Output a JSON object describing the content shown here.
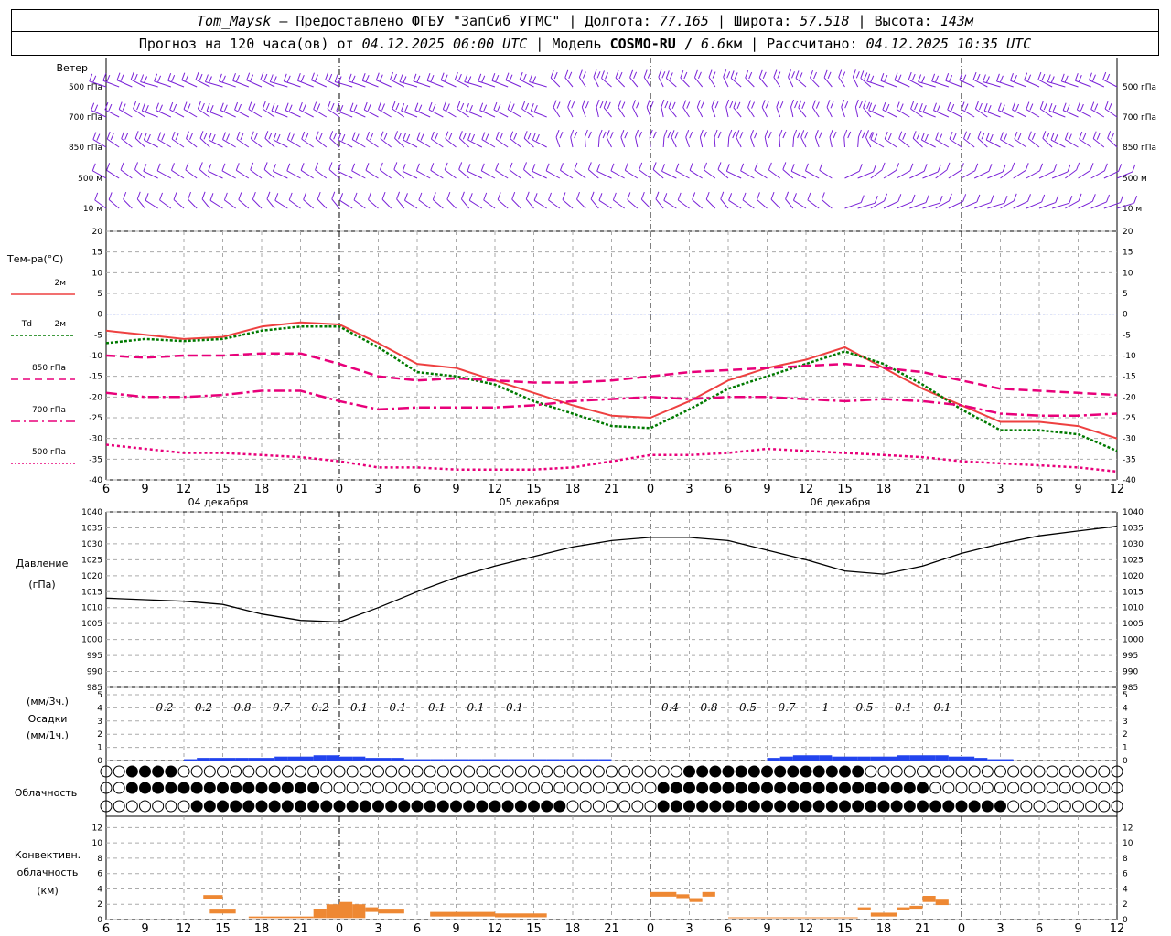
{
  "header": {
    "line1": {
      "station": "Tom_Maysk",
      "provided": " – Предоставлено ФГБУ \"ЗапСиб УГМС\" | Долгота: ",
      "lon": "77.165",
      "lat_label": " | Широта: ",
      "lat": "57.518",
      "alt_label": " | Высота: ",
      "alt": "143м"
    },
    "line2": {
      "forecast": "Прогноз на 120 часа(ов) от ",
      "from": "04.12.2025 06:00 UTC",
      "model_label": " | Модель ",
      "model": "COSMO-RU / ",
      "res": "6.6",
      "res_unit": "км | Рассчитано: ",
      "calc": "04.12.2025 10:35 UTC"
    }
  },
  "chart_data": {
    "type": "line",
    "x_hours_labels": [
      "6",
      "9",
      "12",
      "15",
      "18",
      "21",
      "0",
      "3",
      "6",
      "9",
      "12",
      "15",
      "18",
      "21",
      "0",
      "3",
      "6",
      "9",
      "12",
      "15",
      "18",
      "21",
      "0",
      "3",
      "6",
      "9",
      "12"
    ],
    "day_labels": [
      "04 декабря",
      "05 декабря",
      "06 декабря"
    ],
    "wind": {
      "title": "Ветер",
      "levels": [
        "500 гПа",
        "700 гПа",
        "850 гПа",
        "500 м",
        "10 м"
      ]
    },
    "temperature": {
      "title": "Тем-ра(°C)",
      "ylim": [
        -40,
        20
      ],
      "yticks": [
        20,
        15,
        10,
        5,
        0,
        -5,
        -10,
        -15,
        -20,
        -25,
        -30,
        -35,
        -40
      ],
      "legend": [
        "2м",
        "Td",
        "2м",
        "850 гПа",
        "700 гПа",
        "500 гПа"
      ],
      "colors": {
        "t2m": "#ee4040",
        "td": "#007a00",
        "p850": "#e8007a",
        "p700": "#e8007a",
        "p500": "#e8007a"
      },
      "x": [
        6,
        9,
        12,
        15,
        18,
        21,
        24,
        27,
        30,
        33,
        36,
        39,
        42,
        45,
        48,
        51,
        54,
        57,
        60,
        63,
        66,
        69,
        72,
        75,
        78,
        81,
        84
      ],
      "series": [
        {
          "name": "2м",
          "values": [
            -4,
            -5,
            -6,
            -5.5,
            -3,
            -2,
            -2.5,
            -7,
            -12,
            -13,
            -16,
            -19,
            -22,
            -24.5,
            -25,
            -21,
            -16,
            -13,
            -11,
            -8,
            -13,
            -18,
            -22,
            -26,
            -26,
            -27,
            -30
          ]
        },
        {
          "name": "Td",
          "values": [
            -7,
            -6,
            -6.5,
            -6,
            -4,
            -3,
            -3,
            -8,
            -14,
            -15,
            -17,
            -21,
            -24,
            -27,
            -27.5,
            -23,
            -18,
            -15,
            -12,
            -9,
            -12,
            -17,
            -23,
            -28,
            -28,
            -29,
            -33
          ]
        },
        {
          "name": "850 гПа",
          "values": [
            -10,
            -10.5,
            -10,
            -10,
            -9.5,
            -9.5,
            -12,
            -15,
            -16,
            -15.5,
            -16,
            -16.5,
            -16.5,
            -16,
            -15,
            -14,
            -13.5,
            -13,
            -12.5,
            -12,
            -13,
            -14,
            -16,
            -18,
            -18.5,
            -19,
            -19.5
          ]
        },
        {
          "name": "700 гПа",
          "values": [
            -19,
            -20,
            -20,
            -19.5,
            -18.5,
            -18.5,
            -21,
            -23,
            -22.5,
            -22.5,
            -22.5,
            -22,
            -21,
            -20.5,
            -20,
            -20.5,
            -20,
            -20,
            -20.5,
            -21,
            -20.5,
            -21,
            -22,
            -24,
            -24.5,
            -24.5,
            -24
          ]
        },
        {
          "name": "500 гПа",
          "values": [
            -31.5,
            -32.5,
            -33.5,
            -33.5,
            -34,
            -34.5,
            -35.5,
            -37,
            -37,
            -37.5,
            -37.5,
            -37.5,
            -37,
            -35.5,
            -34,
            -34,
            -33.5,
            -32.5,
            -33,
            -33.5,
            -34,
            -34.5,
            -35.5,
            -36,
            -36.5,
            -37,
            -38
          ]
        }
      ]
    },
    "pressure": {
      "title1": "Давление",
      "title2": "(гПа)",
      "ylim": [
        985,
        1040
      ],
      "yticks": [
        1040,
        1035,
        1030,
        1025,
        1020,
        1015,
        1010,
        1005,
        1000,
        995,
        990,
        985
      ],
      "x": [
        6,
        9,
        12,
        15,
        18,
        21,
        24,
        27,
        30,
        33,
        36,
        39,
        42,
        45,
        48,
        51,
        54,
        57,
        60,
        63,
        66,
        69,
        72,
        75,
        78,
        81,
        84
      ],
      "values": [
        1013,
        1012.5,
        1012,
        1011,
        1008,
        1006,
        1005.5,
        1010,
        1015,
        1019.5,
        1023,
        1026,
        1029,
        1031,
        1032,
        1032,
        1031,
        1028,
        1025,
        1021.5,
        1020.5,
        1023,
        1027,
        1030,
        1032.5,
        1034,
        1035.5
      ]
    },
    "precip": {
      "title1": "(мм/3ч.)",
      "title2": "Осадки",
      "title3": "(мм/1ч.)",
      "ylim": [
        0,
        5
      ],
      "yticks": [
        5,
        4,
        3,
        2,
        1,
        0
      ],
      "labels_3h": [
        {
          "h": 12,
          "v": "0.2"
        },
        {
          "h": 15,
          "v": "0.2"
        },
        {
          "h": 18,
          "v": "0.8"
        },
        {
          "h": 21,
          "v": "0.7"
        },
        {
          "h": 24,
          "v": "0.2"
        },
        {
          "h": 27,
          "v": "0.1"
        },
        {
          "h": 30,
          "v": "0.1"
        },
        {
          "h": 33,
          "v": "0.1"
        },
        {
          "h": 36,
          "v": "0.1"
        },
        {
          "h": 39,
          "v": "0.1"
        },
        {
          "h": 51,
          "v": "0.4"
        },
        {
          "h": 54,
          "v": "0.8"
        },
        {
          "h": 57,
          "v": "0.5"
        },
        {
          "h": 60,
          "v": "0.7"
        },
        {
          "h": 63,
          "v": "1"
        },
        {
          "h": 66,
          "v": "0.5"
        },
        {
          "h": 69,
          "v": "0.1"
        },
        {
          "h": 72,
          "v": "0.1"
        }
      ],
      "hourly_mm": [
        0,
        0,
        0,
        0,
        0,
        0,
        0.1,
        0.2,
        0.2,
        0.2,
        0.2,
        0.2,
        0.2,
        0.3,
        0.3,
        0.3,
        0.4,
        0.4,
        0.3,
        0.3,
        0.2,
        0.2,
        0.2,
        0.1,
        0.1,
        0.1,
        0.1,
        0.1,
        0.1,
        0.1,
        0.1,
        0.1,
        0.1,
        0.1,
        0.1,
        0.1,
        0.1,
        0.1,
        0.1,
        0,
        0,
        0,
        0,
        0,
        0,
        0,
        0,
        0,
        0,
        0,
        0,
        0.2,
        0.3,
        0.4,
        0.4,
        0.4,
        0.3,
        0.3,
        0.3,
        0.3,
        0.3,
        0.4,
        0.4,
        0.4,
        0.4,
        0.3,
        0.3,
        0.2,
        0.1,
        0.1,
        0,
        0,
        0,
        0,
        0,
        0,
        0,
        0,
        0,
        0
      ]
    },
    "cloud": {
      "title": "Облачность"
    },
    "convective": {
      "title1": "Конвективн.",
      "title2": "облачность",
      "title3": "(км)",
      "ylim": [
        0,
        13
      ],
      "yticks": [
        12,
        10,
        8,
        6,
        4,
        2,
        0
      ],
      "blocks": [
        {
          "h0": 13.5,
          "h1": 15,
          "bot": 2.7,
          "top": 3.2
        },
        {
          "h0": 14,
          "h1": 16,
          "bot": 0.8,
          "top": 1.3
        },
        {
          "h0": 17,
          "h1": 22,
          "bot": 0.2,
          "top": 0.4
        },
        {
          "h0": 22,
          "h1": 23,
          "bot": 0.2,
          "top": 1.4
        },
        {
          "h0": 23,
          "h1": 24,
          "bot": 0.2,
          "top": 2
        },
        {
          "h0": 24,
          "h1": 25,
          "bot": 0.2,
          "top": 2.3
        },
        {
          "h0": 25,
          "h1": 26,
          "bot": 0.2,
          "top": 2
        },
        {
          "h0": 26,
          "h1": 27,
          "bot": 1,
          "top": 1.6
        },
        {
          "h0": 27,
          "h1": 29,
          "bot": 0.8,
          "top": 1.3
        },
        {
          "h0": 31,
          "h1": 36,
          "bot": 0.4,
          "top": 1
        },
        {
          "h0": 36,
          "h1": 40,
          "bot": 0.3,
          "top": 0.8
        },
        {
          "h0": 48,
          "h1": 50,
          "bot": 3,
          "top": 3.6
        },
        {
          "h0": 50,
          "h1": 51,
          "bot": 2.8,
          "top": 3.3
        },
        {
          "h0": 51,
          "h1": 52,
          "bot": 2.3,
          "top": 2.8
        },
        {
          "h0": 52,
          "h1": 53,
          "bot": 3,
          "top": 3.6
        },
        {
          "h0": 54,
          "h1": 64,
          "bot": 0.2,
          "top": 0.3
        },
        {
          "h0": 64,
          "h1": 65,
          "bot": 1.2,
          "top": 1.6
        },
        {
          "h0": 65,
          "h1": 67,
          "bot": 0.4,
          "top": 0.9
        },
        {
          "h0": 67,
          "h1": 68,
          "bot": 1.2,
          "top": 1.6
        },
        {
          "h0": 68,
          "h1": 69,
          "bot": 1.3,
          "top": 1.8
        },
        {
          "h0": 69,
          "h1": 70,
          "bot": 2.3,
          "top": 3.1
        },
        {
          "h0": 70,
          "h1": 71,
          "bot": 1.9,
          "top": 2.6
        }
      ]
    }
  }
}
